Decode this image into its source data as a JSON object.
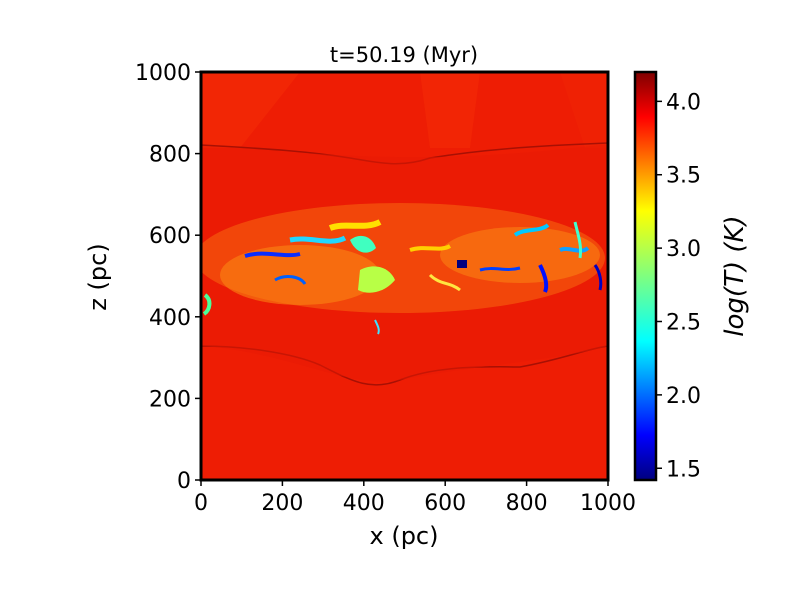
{
  "chart_data": {
    "type": "heatmap",
    "title": "t=50.19 (Myr)",
    "xlabel": "x (pc)",
    "ylabel": "z (pc)",
    "xlim": [
      0,
      1000
    ],
    "ylim": [
      0,
      1000
    ],
    "x_ticks": [
      0,
      200,
      400,
      600,
      800,
      1000
    ],
    "y_ticks": [
      0,
      200,
      400,
      600,
      800,
      1000
    ],
    "colorbar": {
      "label": "log(T) (K)",
      "colormap": "jet",
      "range": [
        1.42,
        4.2
      ],
      "ticks": [
        "1.5",
        "2.0",
        "2.5",
        "3.0",
        "3.5",
        "4.0"
      ]
    },
    "features": {
      "shell_upper_z_pc": 820,
      "shell_lower_z_pc": 330,
      "cold_filament_band_z_pc": [
        400,
        650
      ]
    }
  }
}
